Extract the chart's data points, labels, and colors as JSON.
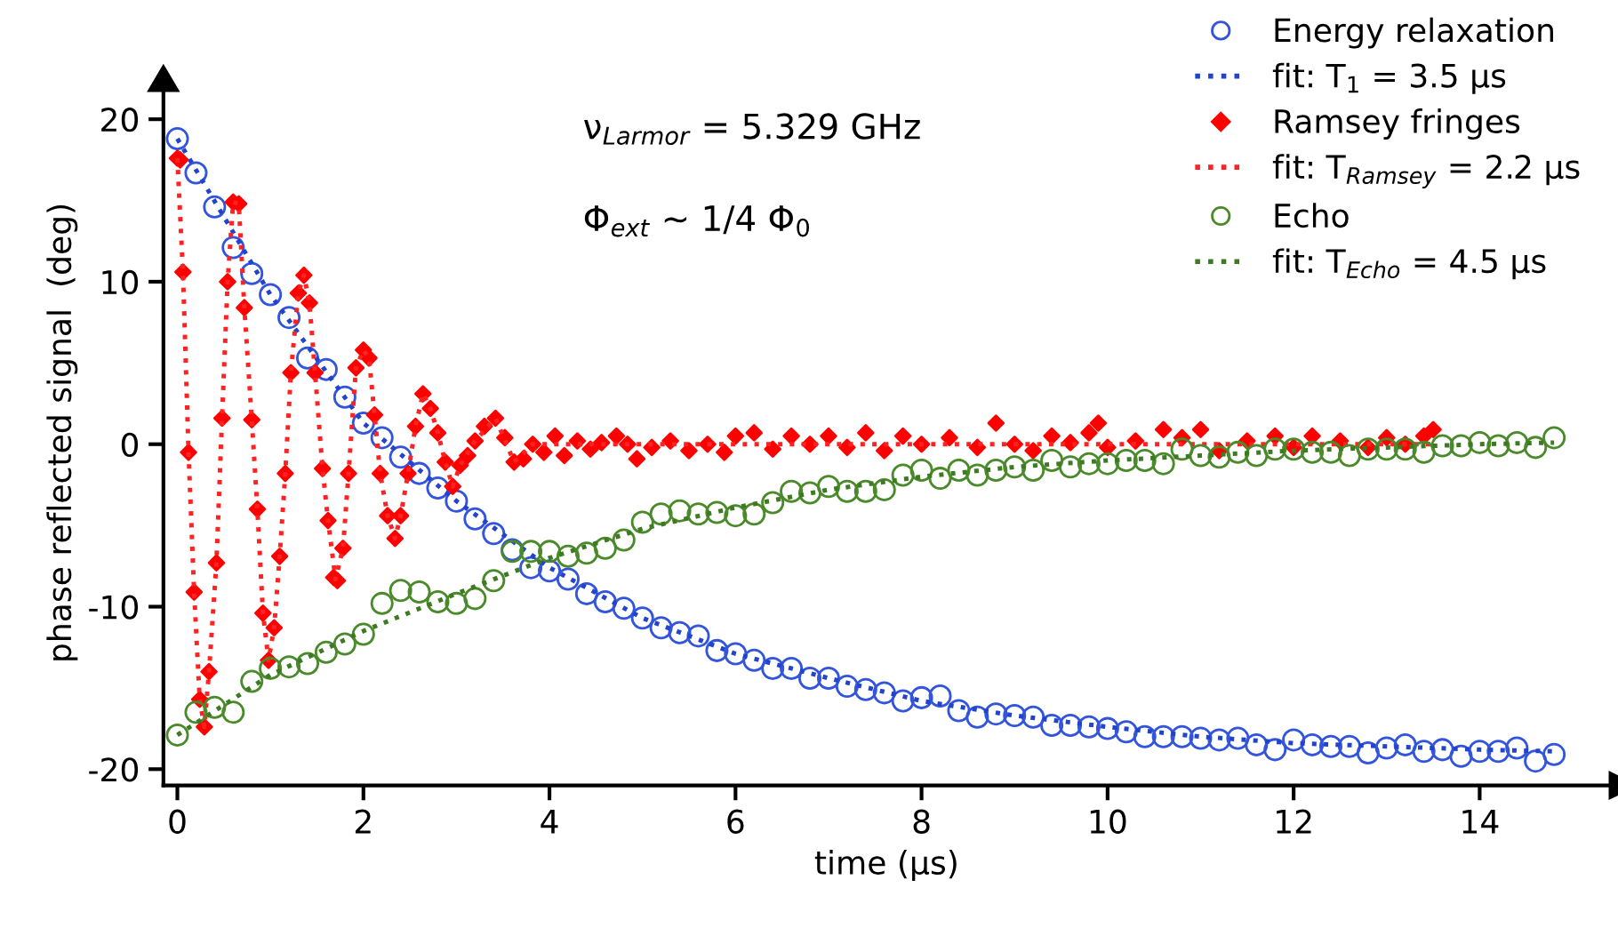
{
  "chart_data": {
    "type": "scatter",
    "xlabel": "time (µs)",
    "ylabel": "phase reflected signal  (deg)",
    "annotations": [
      "ν$_{Larmor}$ = 5.329 GHz",
      "Φ$_{ext}$ ~ 1/4 Φ$_{0}$"
    ],
    "xlim": [
      -0.15,
      15.4
    ],
    "ylim": [
      -21,
      22.4
    ],
    "xticks": [
      0,
      2,
      4,
      6,
      8,
      10,
      12,
      14
    ],
    "yticks": [
      -20,
      -10,
      0,
      10,
      20
    ],
    "grid": false,
    "legend": "top right",
    "series": [
      {
        "name": "Energy relaxation",
        "marker": "circle",
        "color": "#3355dd",
        "x": [
          0,
          0.2,
          0.4,
          0.6,
          0.8,
          1.0,
          1.2,
          1.4,
          1.6,
          1.8,
          2.0,
          2.2,
          2.4,
          2.6,
          2.8,
          3.0,
          3.2,
          3.4,
          3.6,
          3.8,
          4.0,
          4.2,
          4.4,
          4.6,
          4.8,
          5.0,
          5.2,
          5.4,
          5.6,
          5.8,
          6.0,
          6.2,
          6.4,
          6.6,
          6.8,
          7.0,
          7.2,
          7.4,
          7.6,
          7.8,
          8.0,
          8.2,
          8.4,
          8.6,
          8.8,
          9.0,
          9.2,
          9.4,
          9.6,
          9.8,
          10.0,
          10.2,
          10.4,
          10.6,
          10.8,
          11.0,
          11.2,
          11.4,
          11.6,
          11.8,
          12.0,
          12.2,
          12.4,
          12.6,
          12.8,
          13.0,
          13.2,
          13.4,
          13.6,
          13.8,
          14.0,
          14.2,
          14.4,
          14.6,
          14.8
        ],
        "values": [
          18.8,
          16.7,
          14.6,
          12.1,
          10.5,
          9.2,
          7.8,
          5.3,
          4.6,
          2.9,
          1.3,
          0.4,
          -0.8,
          -1.8,
          -2.7,
          -3.5,
          -4.6,
          -5.5,
          -6.5,
          -7.6,
          -7.8,
          -8.3,
          -9.2,
          -9.7,
          -10.1,
          -10.7,
          -11.3,
          -11.6,
          -11.8,
          -12.7,
          -12.9,
          -13.3,
          -13.8,
          -13.8,
          -14.4,
          -14.4,
          -14.9,
          -15.1,
          -15.3,
          -15.8,
          -15.6,
          -15.5,
          -16.4,
          -16.8,
          -16.6,
          -16.7,
          -16.8,
          -17.3,
          -17.3,
          -17.4,
          -17.5,
          -17.7,
          -18.0,
          -18.0,
          -18.0,
          -18.1,
          -18.2,
          -18.1,
          -18.5,
          -18.8,
          -18.2,
          -18.5,
          -18.6,
          -18.6,
          -19.0,
          -18.7,
          -18.5,
          -18.9,
          -18.8,
          -19.2,
          -18.9,
          -18.9,
          -18.7,
          -19.5,
          -19.1
        ]
      },
      {
        "name": "fit: T$_{1}$ = 3.5 μs",
        "type": "line",
        "line_style": "dotted",
        "marker": "none",
        "color": "#2244cc",
        "x": [
          0,
          1,
          2,
          3,
          4,
          5,
          6,
          7,
          8,
          9,
          10,
          11,
          12,
          13,
          14,
          14.8
        ],
        "values": [
          18.8,
          9.2,
          1.3,
          -3.5,
          -7.6,
          -10.7,
          -12.9,
          -14.4,
          -15.8,
          -16.7,
          -17.4,
          -18.0,
          -18.4,
          -18.6,
          -18.8,
          -18.9
        ]
      },
      {
        "name": "Ramsey fringes",
        "marker": "diamond",
        "color": "#ff0000",
        "x": [
          0,
          0.03,
          0.06,
          0.12,
          0.18,
          0.24,
          0.29,
          0.34,
          0.42,
          0.48,
          0.54,
          0.6,
          0.66,
          0.72,
          0.8,
          0.86,
          0.92,
          0.98,
          1.04,
          1.1,
          1.16,
          1.22,
          1.3,
          1.36,
          1.42,
          1.48,
          1.56,
          1.62,
          1.68,
          1.72,
          1.78,
          1.84,
          1.92,
          2.0,
          2.06,
          2.12,
          2.18,
          2.26,
          2.34,
          2.4,
          2.48,
          2.56,
          2.64,
          2.72,
          2.8,
          2.88,
          2.96,
          3.04,
          3.12,
          3.2,
          3.3,
          3.42,
          3.52,
          3.62,
          3.72,
          3.82,
          3.94,
          4.06,
          4.16,
          4.3,
          4.44,
          4.56,
          4.72,
          4.84,
          4.94,
          5.1,
          5.3,
          5.5,
          5.7,
          5.88,
          6.0,
          6.2,
          6.4,
          6.6,
          6.8,
          7.0,
          7.2,
          7.4,
          7.6,
          7.8,
          8.0,
          8.3,
          8.6,
          8.8,
          9.0,
          9.2,
          9.4,
          9.6,
          9.8,
          9.9,
          10.0,
          10.3,
          10.6,
          10.8,
          11.0,
          11.2,
          11.5,
          11.8,
          12.0,
          12.2,
          12.5,
          12.8,
          13.0,
          13.2,
          13.4,
          13.5
        ],
        "values": [
          17.6,
          17.5,
          10.6,
          -0.5,
          -9.1,
          -15.7,
          -17.4,
          -14.0,
          -7.3,
          1.6,
          10.0,
          14.9,
          14.8,
          8.4,
          1.5,
          -4.0,
          -10.4,
          -13.3,
          -11.3,
          -6.9,
          -1.8,
          4.4,
          9.3,
          10.4,
          8.7,
          4.4,
          -1.5,
          -4.7,
          -8.2,
          -8.4,
          -6.4,
          -1.8,
          4.7,
          5.8,
          5.3,
          1.8,
          -1.8,
          -4.4,
          -5.8,
          -4.4,
          -1.8,
          1.1,
          3.1,
          2.2,
          0.7,
          -1.1,
          -2.6,
          -1.3,
          -0.7,
          0.2,
          1.1,
          1.6,
          0.4,
          -1.1,
          -0.9,
          0,
          -0.5,
          0.5,
          -0.7,
          0.2,
          -0.3,
          0.1,
          0.5,
          0,
          -0.9,
          -0.2,
          0.2,
          -0.4,
          0,
          -0.5,
          0.5,
          0.7,
          -0.3,
          0.5,
          0,
          0.5,
          -0.2,
          0.7,
          -0.4,
          0.5,
          0,
          0.4,
          -0.2,
          1.3,
          0,
          -0.4,
          0.5,
          0.1,
          0.7,
          1.3,
          -0.2,
          0.2,
          0.9,
          0.4,
          0.9,
          -0.4,
          0.2,
          0.5,
          -0.2,
          0.5,
          0.2,
          -0.2,
          0.4,
          0,
          0.5,
          0.9
        ]
      },
      {
        "name": "fit: T$_{Ramsey}$ = 2.2 μs",
        "type": "line",
        "line_style": "dotted",
        "marker": "none",
        "color": "#ff2222",
        "x": [
          0,
          0.06,
          0.12,
          0.18,
          0.24,
          0.29,
          0.34,
          0.42,
          0.48,
          0.54,
          0.6,
          0.66,
          0.72,
          0.8,
          0.86,
          0.92,
          0.98,
          1.04,
          1.1,
          1.16,
          1.22,
          1.3,
          1.36,
          1.42,
          1.48,
          1.56,
          1.62,
          1.7,
          1.78,
          1.84,
          1.92,
          2.0,
          2.06,
          2.12,
          2.18,
          2.26,
          2.34,
          2.4,
          2.48,
          2.56,
          2.64,
          2.72,
          2.8,
          2.88,
          2.96,
          3.04,
          3.2,
          3.42,
          3.62,
          3.82,
          4.1,
          4.5,
          5.0,
          6.0,
          8.0,
          10.0,
          13.5
        ],
        "values": [
          17.6,
          10.6,
          -0.5,
          -9.1,
          -15.7,
          -17.4,
          -14.0,
          -7.3,
          1.6,
          10.0,
          14.9,
          14.8,
          8.4,
          1.5,
          -4.0,
          -10.4,
          -13.3,
          -11.3,
          -6.9,
          -1.8,
          4.4,
          9.3,
          10.4,
          8.7,
          4.4,
          -1.5,
          -4.7,
          -8.3,
          -6.4,
          -1.8,
          4.7,
          5.8,
          5.3,
          1.8,
          -1.8,
          -4.4,
          -5.8,
          -4.4,
          -1.8,
          1.1,
          3.1,
          2.2,
          0.7,
          -1.1,
          -2.6,
          -1.3,
          0.2,
          1.6,
          -1.1,
          0,
          0,
          0,
          0,
          0,
          0,
          0,
          0
        ]
      },
      {
        "name": "Echo",
        "marker": "circle",
        "color": "#4a8a2a",
        "x": [
          0,
          0.2,
          0.4,
          0.6,
          0.8,
          1.0,
          1.2,
          1.4,
          1.6,
          1.8,
          2.0,
          2.2,
          2.4,
          2.6,
          2.8,
          3.0,
          3.2,
          3.4,
          3.6,
          3.8,
          4.0,
          4.2,
          4.4,
          4.6,
          4.8,
          5.0,
          5.2,
          5.4,
          5.6,
          5.8,
          6.0,
          6.2,
          6.4,
          6.6,
          6.8,
          7.0,
          7.2,
          7.4,
          7.6,
          7.8,
          8.0,
          8.2,
          8.4,
          8.6,
          8.8,
          9.0,
          9.2,
          9.4,
          9.6,
          9.8,
          10.0,
          10.2,
          10.4,
          10.6,
          10.8,
          11.0,
          11.2,
          11.4,
          11.6,
          11.8,
          12.0,
          12.2,
          12.4,
          12.6,
          12.8,
          13.0,
          13.2,
          13.4,
          13.6,
          13.8,
          14.0,
          14.2,
          14.4,
          14.6,
          14.8
        ],
        "values": [
          -17.9,
          -16.5,
          -16.2,
          -16.5,
          -14.6,
          -13.8,
          -13.7,
          -13.5,
          -12.8,
          -12.3,
          -11.7,
          -9.8,
          -9.0,
          -9.1,
          -9.7,
          -9.8,
          -9.5,
          -8.4,
          -6.6,
          -6.6,
          -6.6,
          -6.9,
          -6.7,
          -6.4,
          -5.9,
          -4.8,
          -4.3,
          -4.1,
          -4.3,
          -4.2,
          -4.4,
          -4.3,
          -3.6,
          -2.9,
          -3.0,
          -2.6,
          -2.9,
          -2.9,
          -2.8,
          -1.9,
          -1.6,
          -2.1,
          -1.6,
          -1.9,
          -1.6,
          -1.4,
          -1.6,
          -1.0,
          -1.4,
          -1.2,
          -1.2,
          -1.0,
          -1.0,
          -1.2,
          -0.3,
          -0.7,
          -0.8,
          -0.5,
          -0.7,
          -0.3,
          -0.3,
          -0.5,
          -0.5,
          -0.7,
          -0.3,
          -0.3,
          -0.3,
          -0.5,
          -0.1,
          -0.1,
          0.1,
          -0.1,
          0.1,
          -0.2,
          0.4
        ]
      },
      {
        "name": "fit: T$_{Echo}$ = 4.5 μs",
        "type": "line",
        "line_style": "dotted",
        "marker": "none",
        "color": "#3d7a22",
        "x": [
          0,
          1,
          2,
          3,
          4,
          5,
          6,
          7,
          8,
          9,
          10,
          11,
          12,
          13,
          14,
          14.8
        ],
        "values": [
          -17.9,
          -14.2,
          -11.5,
          -9.2,
          -7.0,
          -5.2,
          -3.9,
          -2.8,
          -2.0,
          -1.4,
          -1.0,
          -0.7,
          -0.4,
          -0.2,
          0,
          0.1
        ]
      }
    ]
  }
}
